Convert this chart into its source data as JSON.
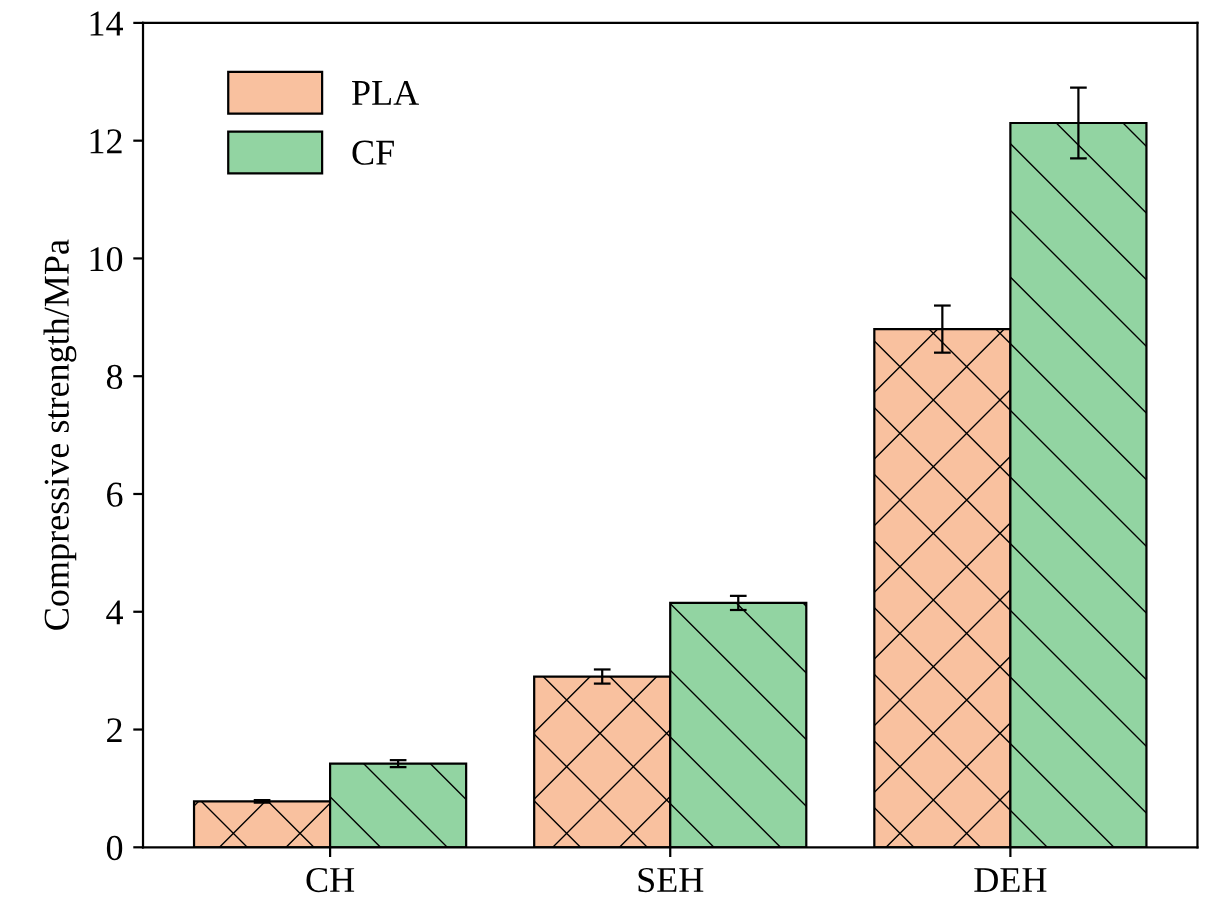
{
  "chart_data": {
    "type": "bar",
    "ylabel": "Compressive strength/MPa",
    "categories": [
      "CH",
      "SEH",
      "DEH"
    ],
    "series": [
      {
        "name": "PLA",
        "color": "#f9c19f",
        "values": [
          0.78,
          2.9,
          8.8
        ],
        "errors": [
          0.02,
          0.12,
          0.4
        ]
      },
      {
        "name": "CF",
        "color": "#92d4a2",
        "values": [
          1.42,
          4.15,
          12.3
        ],
        "errors": [
          0.06,
          0.12,
          0.6
        ]
      }
    ],
    "ylim": [
      0,
      14
    ],
    "yticks": [
      0,
      2,
      4,
      6,
      8,
      10,
      12,
      14
    ],
    "grid": false,
    "legend": "top left"
  }
}
